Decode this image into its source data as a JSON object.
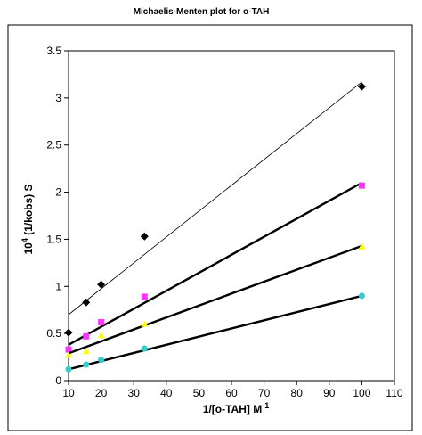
{
  "chart_data": {
    "type": "scatter",
    "title": "Michaelis-Menten plot for o-TAH",
    "xlabel": {
      "base": "1/[o-TAH] M",
      "sup": "-1"
    },
    "ylabel": {
      "pre": "10",
      "sup": "4",
      "post": " (1/kobs) S"
    },
    "xlim": [
      0,
      110
    ],
    "ylim": [
      0,
      3.5
    ],
    "x_ticks": [
      10,
      20,
      30,
      40,
      50,
      60,
      70,
      80,
      90,
      100,
      110
    ],
    "x_tick_labels": [
      "10",
      "20",
      "30",
      "40",
      "50",
      "60",
      "70",
      "80",
      "90",
      "100",
      "110"
    ],
    "y_ticks": [
      0,
      0.5,
      1,
      1.5,
      2,
      2.5,
      3,
      3.5
    ],
    "y_tick_labels": [
      "0",
      "0.5",
      "1",
      "1.5",
      "2",
      "2.5",
      "3",
      "3.5"
    ],
    "grid": false,
    "legend": "none",
    "series": [
      {
        "marker": "diamond",
        "color": "#000000",
        "line_color": "#000000",
        "line_width": "thin",
        "points": [
          [
            10,
            0.51
          ],
          [
            15.4,
            0.83
          ],
          [
            20,
            1.02
          ],
          [
            33.3,
            1.53
          ],
          [
            100,
            3.12
          ]
        ],
        "trend": [
          [
            10,
            0.7
          ],
          [
            100,
            3.17
          ]
        ]
      },
      {
        "marker": "square",
        "color": "#ff33ff",
        "line_color": "#000000",
        "line_width": "thick",
        "points": [
          [
            10,
            0.33
          ],
          [
            15.4,
            0.47
          ],
          [
            20,
            0.62
          ],
          [
            33.3,
            0.89
          ],
          [
            100,
            2.07
          ]
        ],
        "trend": [
          [
            10,
            0.38
          ],
          [
            100,
            2.1
          ]
        ]
      },
      {
        "marker": "triangle",
        "color": "#ffff00",
        "line_color": "#000000",
        "line_width": "thick",
        "points": [
          [
            10,
            0.27
          ],
          [
            15.4,
            0.31
          ],
          [
            20,
            0.48
          ],
          [
            33.3,
            0.6
          ],
          [
            100,
            1.42
          ]
        ],
        "trend": [
          [
            10,
            0.29
          ],
          [
            100,
            1.43
          ]
        ]
      },
      {
        "marker": "circle",
        "color": "#33cccc",
        "line_color": "#000000",
        "line_width": "thick",
        "points": [
          [
            10,
            0.12
          ],
          [
            15.4,
            0.17
          ],
          [
            20,
            0.22
          ],
          [
            33.3,
            0.34
          ],
          [
            100,
            0.9
          ]
        ],
        "trend": [
          [
            10,
            0.12
          ],
          [
            100,
            0.9
          ]
        ]
      }
    ]
  }
}
